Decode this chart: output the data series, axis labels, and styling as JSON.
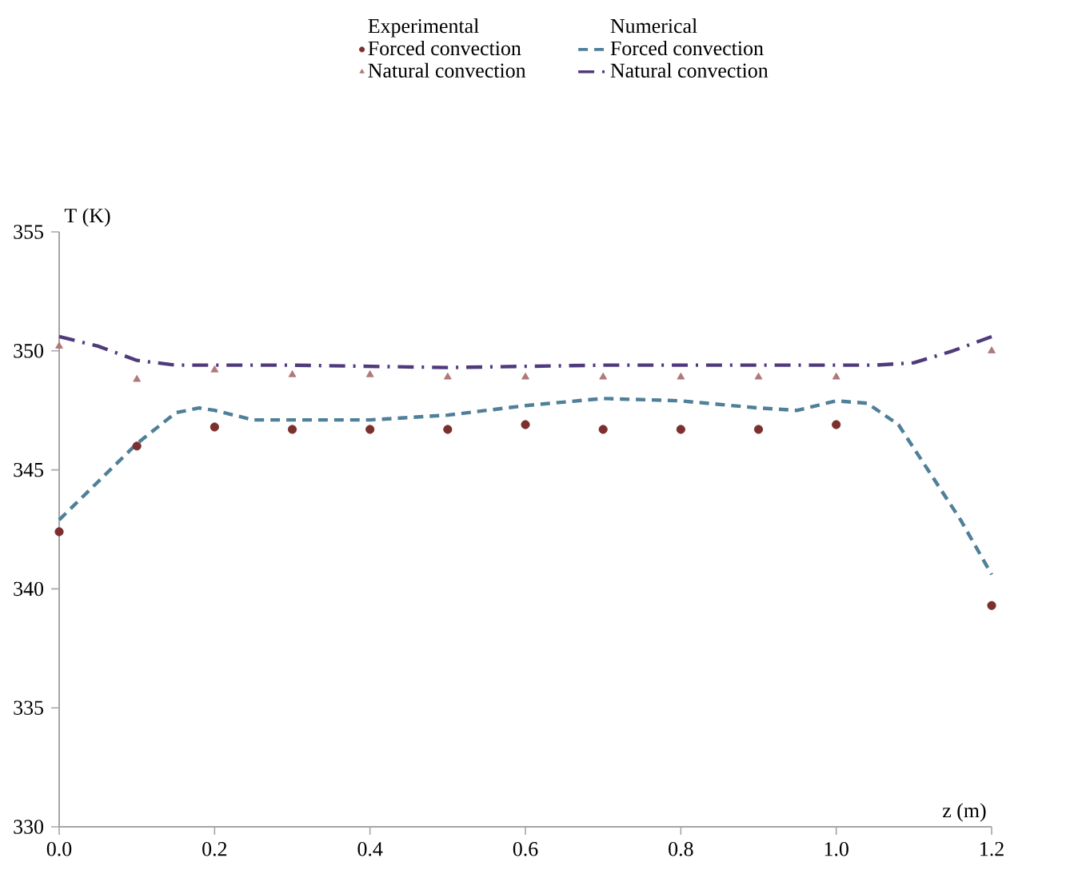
{
  "chart_data": {
    "type": "line",
    "xlabel": "z (m)",
    "ylabel": "T (K)",
    "legend": "top",
    "grid": false,
    "annotations": [
      "Experimental",
      "Numerical"
    ],
    "xlim": [
      0,
      1.2
    ],
    "ylim": [
      330,
      355
    ],
    "xticks": [
      {
        "value": 0,
        "label": "0.0"
      },
      {
        "value": 0.2,
        "label": "0.2"
      },
      {
        "value": 0.4,
        "label": "0.4"
      },
      {
        "value": 0.6,
        "label": "0.6"
      },
      {
        "value": 0.8,
        "label": "0.8"
      },
      {
        "value": 1.0,
        "label": "1.0"
      },
      {
        "value": 1.2,
        "label": "1.2"
      }
    ],
    "yticks": [
      330,
      335,
      340,
      345,
      350,
      355
    ],
    "series": [
      {
        "name": "Forced convection",
        "type": "scatter",
        "marker": "circle",
        "color": "#7b2f2f",
        "x": [
          0,
          0.1,
          0.2,
          0.3,
          0.4,
          0.5,
          0.6,
          0.7,
          0.8,
          0.9,
          1.0,
          1.2
        ],
        "values": [
          342.4,
          346.0,
          346.8,
          346.7,
          346.7,
          346.7,
          346.9,
          346.7,
          346.7,
          346.7,
          346.9,
          339.3
        ]
      },
      {
        "name": "Natural convection",
        "type": "scatter",
        "marker": "triangle",
        "color": "#b07878",
        "x": [
          0,
          0.1,
          0.2,
          0.3,
          0.4,
          0.5,
          0.6,
          0.7,
          0.8,
          0.9,
          1.0,
          1.2
        ],
        "values": [
          350.2,
          348.8,
          349.2,
          349.0,
          349.0,
          348.9,
          348.9,
          348.9,
          348.9,
          348.9,
          348.9,
          350.0
        ]
      },
      {
        "name": "Forced convection",
        "line_style": "dashed",
        "color": "#4f7f99",
        "x": [
          0,
          0.05,
          0.1,
          0.15,
          0.18,
          0.2,
          0.25,
          0.3,
          0.4,
          0.5,
          0.6,
          0.7,
          0.8,
          0.9,
          0.95,
          1.0,
          1.04,
          1.08,
          1.12,
          1.16,
          1.2
        ],
        "values": [
          342.9,
          344.5,
          346.1,
          347.4,
          347.6,
          347.5,
          347.1,
          347.1,
          347.1,
          347.3,
          347.7,
          348.0,
          347.9,
          347.6,
          347.5,
          347.9,
          347.8,
          346.9,
          344.9,
          342.9,
          340.6
        ]
      },
      {
        "name": "Natural convection",
        "line_style": "dashdot",
        "color": "#4f3a7c",
        "x": [
          0,
          0.05,
          0.1,
          0.15,
          0.2,
          0.3,
          0.5,
          0.7,
          0.9,
          1.0,
          1.05,
          1.1,
          1.15,
          1.2
        ],
        "values": [
          350.6,
          350.2,
          349.6,
          349.4,
          349.4,
          349.4,
          349.3,
          349.4,
          349.4,
          349.4,
          349.4,
          349.5,
          350.0,
          350.6
        ]
      }
    ]
  }
}
